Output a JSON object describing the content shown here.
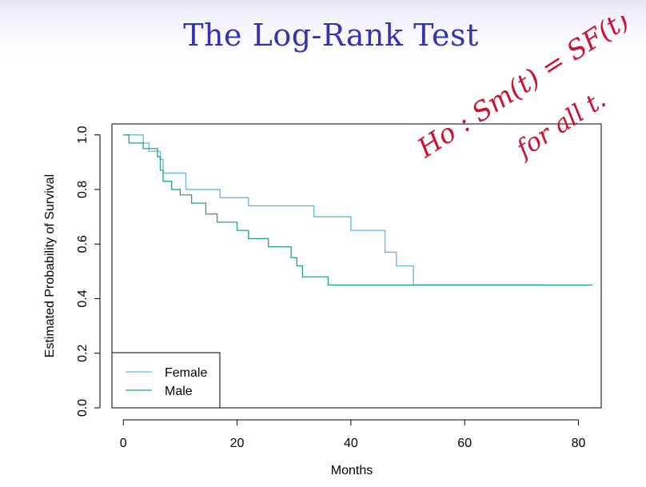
{
  "slide": {
    "title": "The Log-Rank Test"
  },
  "annotation": {
    "line1": "Ho : Sm(t) = SF(t)",
    "line2": "for all t."
  },
  "colors": {
    "title": "#3333b3",
    "female": "#61b5df",
    "male": "#22a08a",
    "ink": "#cc1133"
  },
  "chart_data": {
    "type": "line",
    "title": "",
    "xlabel": "Months",
    "ylabel": "Estimated Probability of Survival",
    "xlim": [
      -2,
      84
    ],
    "ylim": [
      0,
      1.04
    ],
    "xticks": [
      0,
      20,
      40,
      60,
      80
    ],
    "yticks": [
      0.0,
      0.2,
      0.4,
      0.6,
      0.8,
      1.0
    ],
    "xtick_labels": [
      "0",
      "20",
      "40",
      "60",
      "80"
    ],
    "ytick_labels": [
      "0.0",
      "0.2",
      "0.4",
      "0.6",
      "0.8",
      "1.0"
    ],
    "grid": false,
    "legend_position": "bottom-left",
    "step": true,
    "series": [
      {
        "name": "Female",
        "color": "#61b5df",
        "x": [
          0,
          3.5,
          4.5,
          6.5,
          7,
          9,
          11,
          17,
          22,
          33.5,
          40,
          46,
          48,
          51,
          74
        ],
        "y": [
          1.0,
          0.97,
          0.94,
          0.91,
          0.86,
          0.86,
          0.8,
          0.77,
          0.74,
          0.7,
          0.65,
          0.57,
          0.52,
          0.45,
          0.45
        ]
      },
      {
        "name": "Male",
        "color": "#22a08a",
        "x": [
          0,
          1,
          3.5,
          6,
          6.5,
          7,
          8.5,
          10,
          12,
          14.5,
          16.5,
          20,
          22,
          25.5,
          29.5,
          30.5,
          31.5,
          36,
          82.5
        ],
        "y": [
          1.0,
          0.97,
          0.95,
          0.92,
          0.87,
          0.83,
          0.8,
          0.78,
          0.75,
          0.71,
          0.68,
          0.65,
          0.62,
          0.59,
          0.55,
          0.52,
          0.48,
          0.45,
          0.45
        ]
      }
    ]
  }
}
